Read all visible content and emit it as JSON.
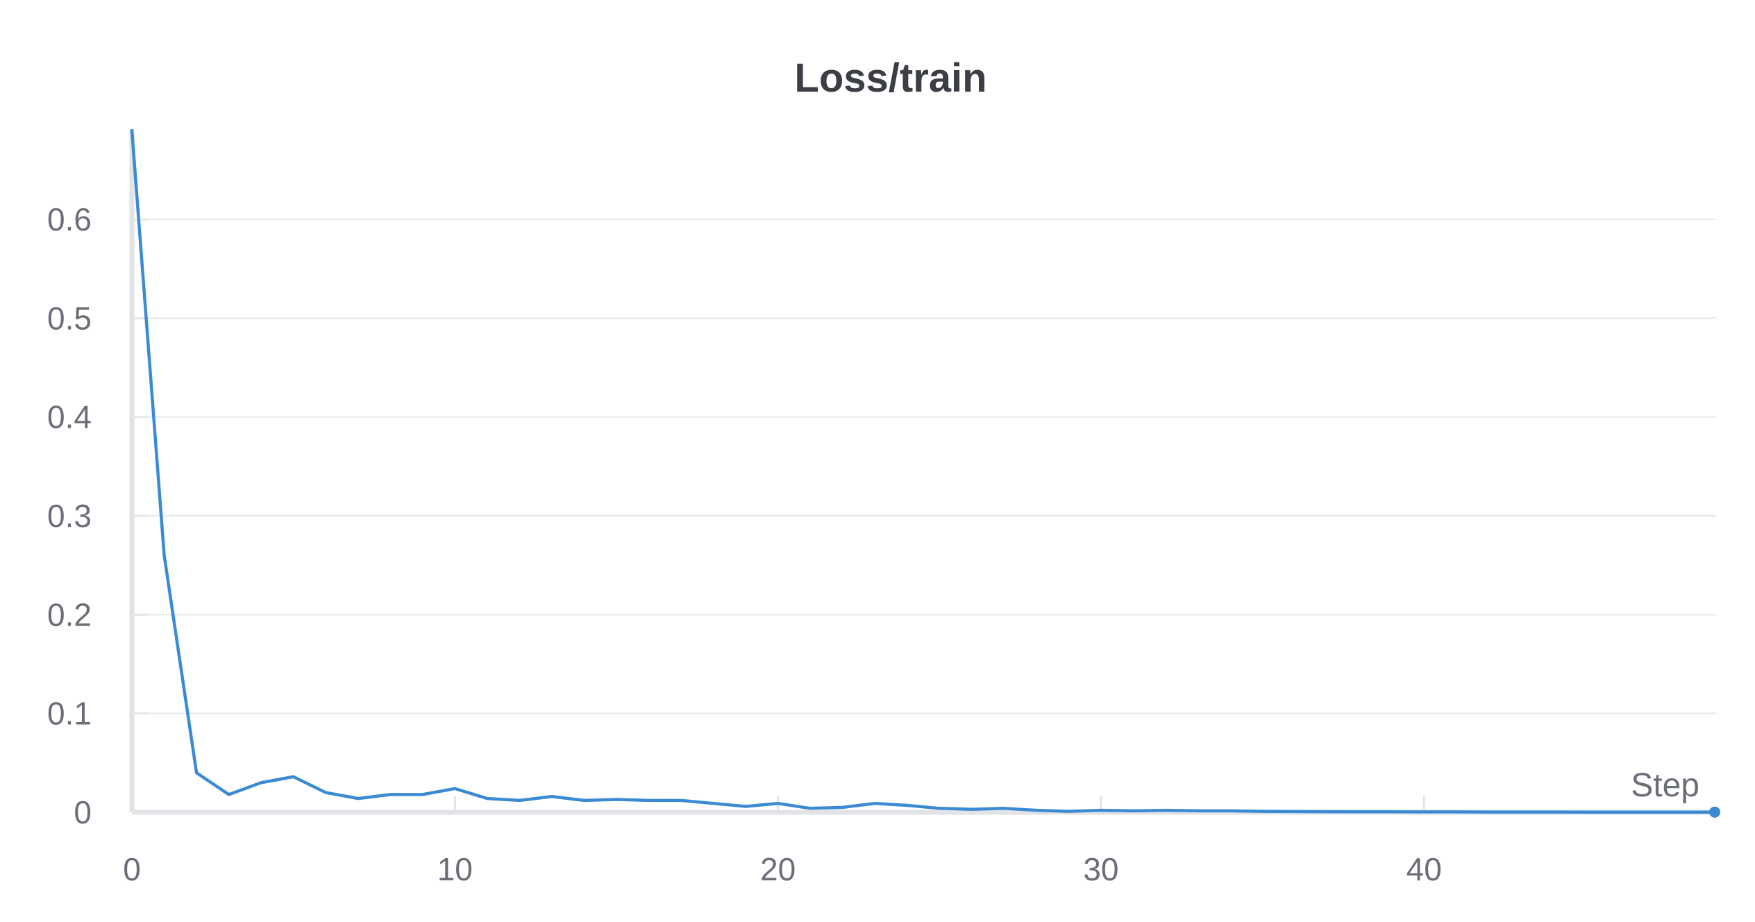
{
  "chart_data": {
    "type": "line",
    "title": "Loss/train",
    "xlabel": "Step",
    "ylabel": "",
    "xlim": [
      0,
      49
    ],
    "ylim": [
      0,
      0.69
    ],
    "x_ticks": [
      0,
      10,
      20,
      30,
      40
    ],
    "x_tick_labels": [
      "0",
      "10",
      "20",
      "30",
      "40"
    ],
    "y_ticks": [
      0,
      0.1,
      0.2,
      0.3,
      0.4,
      0.5,
      0.6
    ],
    "y_tick_labels": [
      "0",
      "0.1",
      "0.2",
      "0.3",
      "0.4",
      "0.5",
      "0.6"
    ],
    "grid": true,
    "series": [
      {
        "color": "#3b8ad4",
        "x": [
          0,
          1,
          2,
          3,
          4,
          5,
          6,
          7,
          8,
          9,
          10,
          11,
          12,
          13,
          14,
          15,
          16,
          17,
          18,
          19,
          20,
          21,
          22,
          23,
          24,
          25,
          26,
          27,
          28,
          29,
          30,
          31,
          32,
          33,
          34,
          35,
          36,
          37,
          38,
          39,
          40,
          41,
          42,
          43,
          44,
          45,
          46,
          47,
          48,
          49
        ],
        "y": [
          0.69,
          0.26,
          0.04,
          0.018,
          0.03,
          0.036,
          0.02,
          0.014,
          0.018,
          0.018,
          0.024,
          0.014,
          0.012,
          0.016,
          0.012,
          0.013,
          0.012,
          0.012,
          0.009,
          0.006,
          0.009,
          0.004,
          0.005,
          0.009,
          0.007,
          0.004,
          0.003,
          0.004,
          0.002,
          0.001,
          0.002,
          0.0015,
          0.002,
          0.0015,
          0.0015,
          0.001,
          0.0008,
          0.0006,
          0.0005,
          0.0005,
          0.0004,
          0.0004,
          0.0003,
          0.0003,
          0.0003,
          0.0002,
          0.0002,
          0.0002,
          0.0002,
          0.0002
        ]
      }
    ]
  }
}
